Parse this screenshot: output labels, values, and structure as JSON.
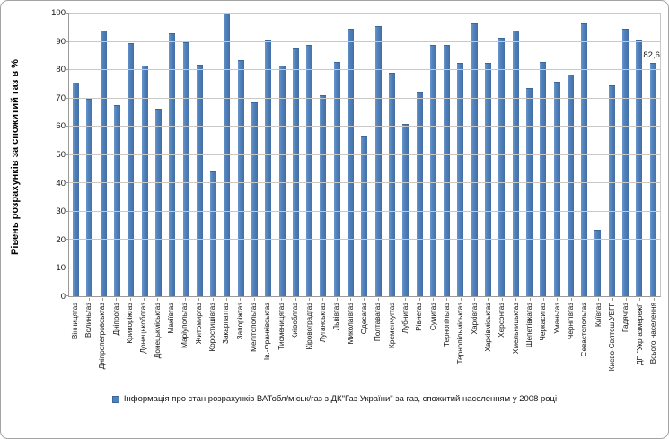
{
  "figure": {
    "background": "#ffffff",
    "border_color": "#a3a3a3"
  },
  "chart_data": {
    "type": "bar",
    "title": "",
    "xlabel": "",
    "ylabel": "Рівень розрахунків за спожитий газ в %",
    "ylim": [
      0,
      100
    ],
    "ytick_step": 10,
    "grid": true,
    "legend_position": "bottom",
    "legend": "Інформація про стан розрахунків ВАТобл/міськ/газ з ДК\"Газ України\" за газ, спожитий населенням у 2008 році",
    "bar_color": "#4f81bd",
    "gridline_color": "#c8c8c8",
    "categories": [
      "Вінницягаз",
      "Волиньгаз",
      "Дніпропетровськгаз",
      "Дніпрогаз",
      "Криворіжгаз",
      "Донецькоблгаз",
      "Донецькміськгаз",
      "Макіївгаз",
      "Маріупольгаз",
      "Житомиргаз",
      "Коростишівгаз",
      "Закарпатгаз",
      "Запоріжгаз",
      "Мелітопольгаз",
      "Ів.-Франківськгаз",
      "Тисменицягаз",
      "Київоблгаз",
      "Кіровоградгаз",
      "Луганськгаз",
      "Львівгаз",
      "Миколаївгаз",
      "Одесагаз",
      "Полтавагаз",
      "Кременчуггаз",
      "Лубнигаз",
      "Рівнегаз",
      "Сумигаз",
      "Тернопільгаз",
      "Тернопільміськгаз",
      "Харківгаз",
      "Харківміськгаз",
      "Херсонгаз",
      "Хмельницькгаз",
      "Шепетівкагаз",
      "Черкасигаз",
      "Уманьгаз",
      "Чернігівгаз",
      "Севастопольгаз",
      "Київгаз",
      "Києво-Святош.УЕГГ",
      "Гадячгаз",
      "ДП \"Укргазмережі\"",
      "Всього населення"
    ],
    "values": [
      75.5,
      70,
      94,
      67.5,
      89.5,
      81.5,
      66.5,
      93,
      90,
      82,
      44,
      100,
      83.5,
      68.5,
      90.5,
      81.5,
      87.5,
      89,
      71,
      83,
      94.5,
      56.5,
      95.5,
      79,
      61,
      72,
      89,
      89,
      82.5,
      96.5,
      82.5,
      91.5,
      94,
      73.5,
      83,
      76,
      78.5,
      96.5,
      23.5,
      74.5,
      94.5,
      90.5,
      82.6
    ],
    "annotations": [
      {
        "category_index": 42,
        "text": "82,6"
      }
    ]
  }
}
